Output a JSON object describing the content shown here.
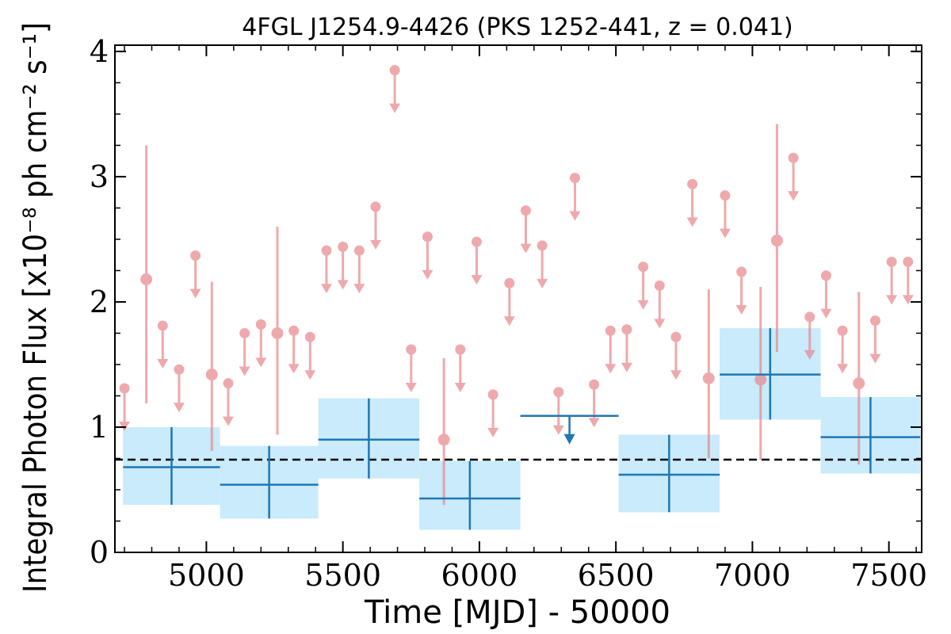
{
  "chart_data": {
    "type": "scatter",
    "title": "4FGL J1254.9-4426 (PKS 1252-441, z = 0.041)",
    "xlabel": "Time [MJD] - 50000",
    "ylabel": "Integral Photon Flux [x10⁻⁸ ph cm⁻² s⁻¹]",
    "xlim": [
      4665,
      7620
    ],
    "ylim": [
      0,
      4.05
    ],
    "x_ticks": [
      5000,
      5500,
      6000,
      6500,
      7000,
      7500
    ],
    "y_ticks": [
      0,
      1,
      2,
      3,
      4
    ],
    "mean_flux_line": 0.74,
    "grid": false,
    "colors": {
      "short_bins": "#e8868a",
      "long_bins": "#1f77b4",
      "long_bins_band": "#c9ebfb",
      "mean_line": "#000000"
    },
    "short_bins_upper_limits": [
      [
        4700,
        1.31
      ],
      [
        4840,
        1.81
      ],
      [
        4900,
        1.46
      ],
      [
        4960,
        2.37
      ],
      [
        5080,
        1.35
      ],
      [
        5140,
        1.75
      ],
      [
        5200,
        1.82
      ],
      [
        5320,
        1.77
      ],
      [
        5380,
        1.72
      ],
      [
        5440,
        2.41
      ],
      [
        5500,
        2.44
      ],
      [
        5560,
        2.41
      ],
      [
        5620,
        2.76
      ],
      [
        5690,
        3.85
      ],
      [
        5750,
        1.62
      ],
      [
        5810,
        2.52
      ],
      [
        5930,
        1.62
      ],
      [
        5990,
        2.48
      ],
      [
        6050,
        1.26
      ],
      [
        6110,
        2.15
      ],
      [
        6170,
        2.73
      ],
      [
        6230,
        2.45
      ],
      [
        6290,
        1.28
      ],
      [
        6350,
        2.99
      ],
      [
        6420,
        1.34
      ],
      [
        6480,
        1.77
      ],
      [
        6540,
        1.78
      ],
      [
        6600,
        2.28
      ],
      [
        6660,
        2.13
      ],
      [
        6720,
        1.72
      ],
      [
        6780,
        2.94
      ],
      [
        6900,
        2.85
      ],
      [
        6960,
        2.24
      ],
      [
        7150,
        3.15
      ],
      [
        7210,
        1.88
      ],
      [
        7270,
        2.21
      ],
      [
        7330,
        1.77
      ],
      [
        7450,
        1.85
      ],
      [
        7510,
        2.32
      ],
      [
        7570,
        2.32
      ]
    ],
    "short_bins_detections": [
      {
        "x": 4780,
        "y": 2.18,
        "y_lo": 1.19,
        "y_hi": 3.25
      },
      {
        "x": 5020,
        "y": 1.42,
        "y_lo": 0.81,
        "y_hi": 2.16
      },
      {
        "x": 5260,
        "y": 1.75,
        "y_lo": 0.94,
        "y_hi": 2.6
      },
      {
        "x": 5870,
        "y": 0.9,
        "y_lo": 0.38,
        "y_hi": 1.55
      },
      {
        "x": 6840,
        "y": 1.39,
        "y_lo": 0.75,
        "y_hi": 2.1
      },
      {
        "x": 7030,
        "y": 1.38,
        "y_lo": 0.74,
        "y_hi": 2.12
      },
      {
        "x": 7090,
        "y": 2.49,
        "y_lo": 1.6,
        "y_hi": 3.42
      },
      {
        "x": 7390,
        "y": 1.35,
        "y_lo": 0.7,
        "y_hi": 2.08
      }
    ],
    "long_bins": [
      {
        "x0": 4695,
        "x1": 5050,
        "y": 0.68,
        "y_lo": 0.38,
        "y_hi": 1.0
      },
      {
        "x0": 5050,
        "x1": 5410,
        "y": 0.54,
        "y_lo": 0.27,
        "y_hi": 0.85
      },
      {
        "x0": 5410,
        "x1": 5780,
        "y": 0.9,
        "y_lo": 0.59,
        "y_hi": 1.23
      },
      {
        "x0": 5780,
        "x1": 6150,
        "y": 0.43,
        "y_lo": 0.18,
        "y_hi": 0.73
      },
      {
        "x0": 6510,
        "x1": 6880,
        "y": 0.62,
        "y_lo": 0.32,
        "y_hi": 0.94
      },
      {
        "x0": 6880,
        "x1": 7250,
        "y": 1.42,
        "y_lo": 1.06,
        "y_hi": 1.79
      },
      {
        "x0": 7250,
        "x1": 7615,
        "y": 0.92,
        "y_lo": 0.63,
        "y_hi": 1.24
      }
    ],
    "long_bins_upper_limits": [
      {
        "x0": 6150,
        "x1": 6510,
        "y": 1.09
      }
    ]
  }
}
